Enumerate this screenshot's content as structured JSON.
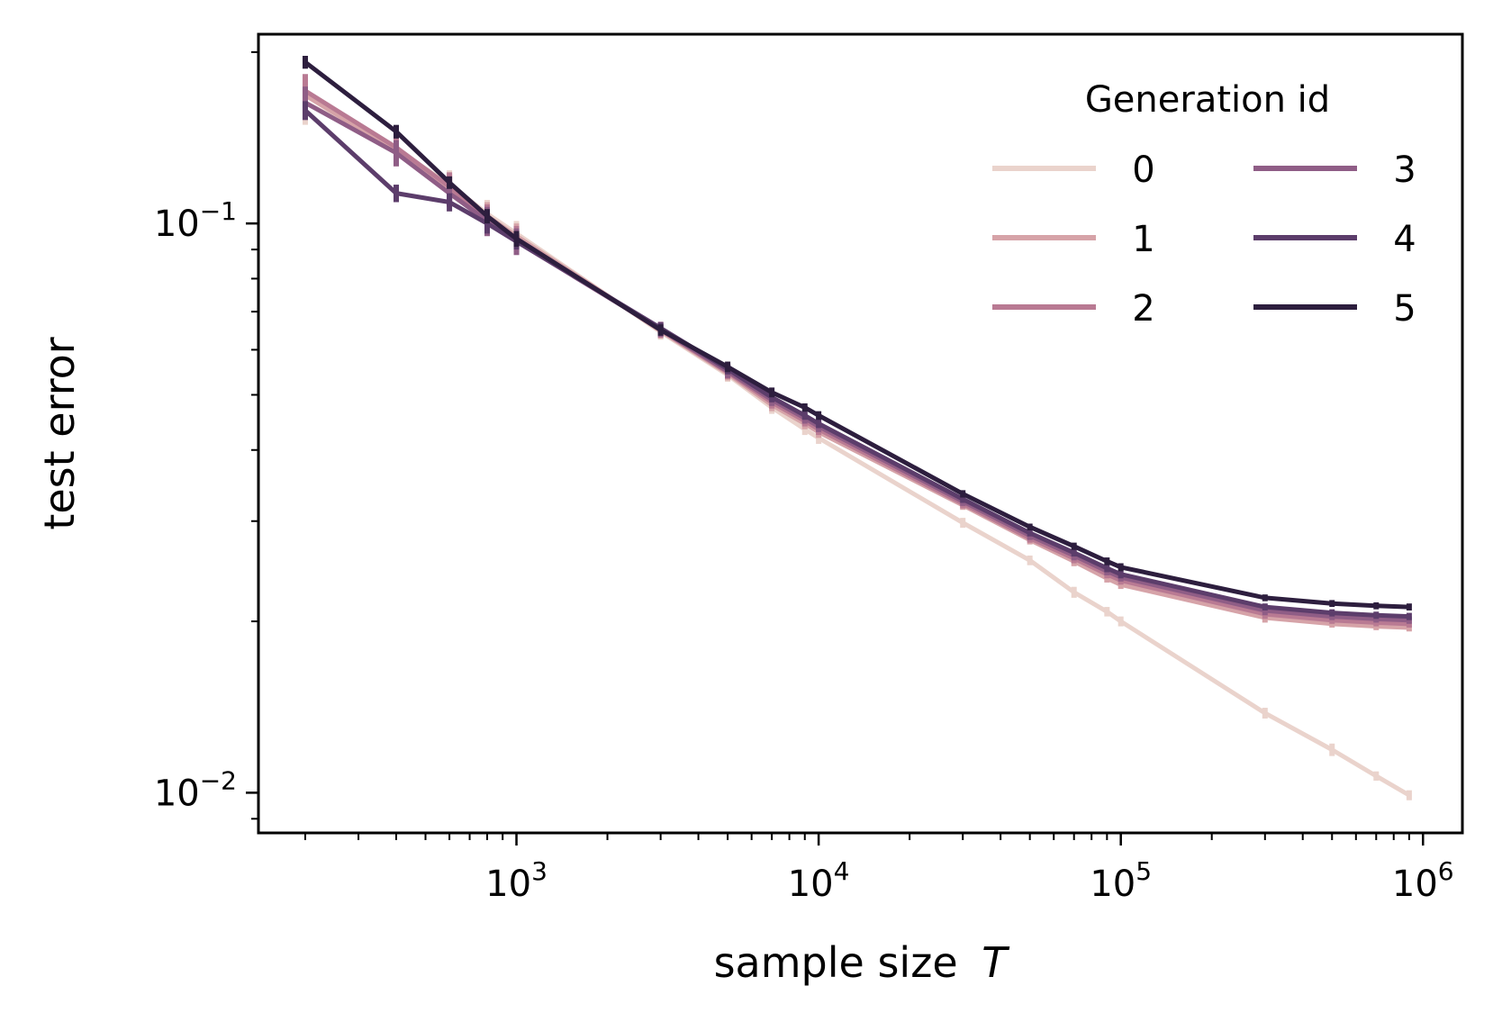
{
  "chart_data": {
    "type": "line",
    "xscale": "log",
    "yscale": "log",
    "xlabel": "sample size",
    "xlabel_var": "T",
    "ylabel": "test error",
    "xlim": [
      140,
      1350000
    ],
    "ylim": [
      0.0085,
      0.215
    ],
    "x_ticks": [
      {
        "value": 1000,
        "base": "10",
        "exp": "3"
      },
      {
        "value": 10000,
        "base": "10",
        "exp": "4"
      },
      {
        "value": 100000,
        "base": "10",
        "exp": "5"
      },
      {
        "value": 1000000,
        "base": "10",
        "exp": "6"
      }
    ],
    "y_ticks": [
      {
        "value": 0.1,
        "base": "10",
        "exp": "−1"
      },
      {
        "value": 0.01,
        "base": "10",
        "exp": "−2"
      }
    ],
    "legend": {
      "title": "Generation id",
      "position": "top-right",
      "columns": 2
    },
    "x": [
      200,
      400,
      600,
      800,
      1000,
      3000,
      5000,
      7000,
      9000,
      10000,
      30000,
      50000,
      70000,
      90000,
      100000,
      300000,
      500000,
      700000,
      900000
    ],
    "series": [
      {
        "name": "0",
        "color": "#ead3cc",
        "values": [
          0.163,
          0.135,
          0.117,
          0.104,
          0.096,
          0.0645,
          0.0542,
          0.0475,
          0.0435,
          0.042,
          0.0298,
          0.0256,
          0.0225,
          0.0208,
          0.02,
          0.0138,
          0.0119,
          0.0107,
          0.0099
        ],
        "errors": [
          0.014,
          0.008,
          0.007,
          0.006,
          0.005,
          0.002,
          0.0015,
          0.0012,
          0.001,
          0.001,
          0.0006,
          0.0005,
          0.0005,
          0.0004,
          0.0004,
          0.0003,
          0.0003,
          0.0002,
          0.0002
        ]
      },
      {
        "name": "1",
        "color": "#d6a3a8",
        "values": [
          0.168,
          0.134,
          0.115,
          0.103,
          0.095,
          0.0648,
          0.0545,
          0.048,
          0.0445,
          0.043,
          0.032,
          0.0278,
          0.0255,
          0.0238,
          0.0232,
          0.0203,
          0.0198,
          0.0196,
          0.0195
        ],
        "errors": [
          0.012,
          0.008,
          0.007,
          0.006,
          0.005,
          0.002,
          0.0015,
          0.0012,
          0.001,
          0.001,
          0.0006,
          0.0005,
          0.0005,
          0.0004,
          0.0004,
          0.0004,
          0.0003,
          0.0003,
          0.0003
        ]
      },
      {
        "name": "2",
        "color": "#b97a93",
        "values": [
          0.171,
          0.136,
          0.116,
          0.102,
          0.094,
          0.065,
          0.0548,
          0.0485,
          0.045,
          0.0435,
          0.0322,
          0.028,
          0.0258,
          0.0242,
          0.0236,
          0.0206,
          0.0201,
          0.0199,
          0.0198
        ],
        "errors": [
          0.012,
          0.008,
          0.007,
          0.006,
          0.005,
          0.002,
          0.0015,
          0.0012,
          0.001,
          0.001,
          0.0006,
          0.0005,
          0.0005,
          0.0004,
          0.0004,
          0.0004,
          0.0003,
          0.0003,
          0.0003
        ]
      },
      {
        "name": "3",
        "color": "#8f5d86",
        "values": [
          0.163,
          0.133,
          0.113,
          0.101,
          0.093,
          0.0652,
          0.055,
          0.049,
          0.0455,
          0.044,
          0.0325,
          0.0283,
          0.0261,
          0.0245,
          0.0239,
          0.0209,
          0.0204,
          0.0202,
          0.0201
        ],
        "errors": [
          0.011,
          0.007,
          0.006,
          0.006,
          0.005,
          0.002,
          0.0015,
          0.0012,
          0.001,
          0.001,
          0.0006,
          0.0005,
          0.0005,
          0.0004,
          0.0004,
          0.0004,
          0.0003,
          0.0003,
          0.0003
        ]
      },
      {
        "name": "4",
        "color": "#5c3d6b",
        "values": [
          0.158,
          0.113,
          0.109,
          0.1,
          0.093,
          0.0655,
          0.0555,
          0.0495,
          0.046,
          0.0445,
          0.0328,
          0.0286,
          0.0264,
          0.0248,
          0.0242,
          0.0212,
          0.0207,
          0.0205,
          0.0204
        ],
        "errors": [
          0.006,
          0.004,
          0.004,
          0.004,
          0.003,
          0.0015,
          0.0012,
          0.001,
          0.0008,
          0.0008,
          0.0005,
          0.0004,
          0.0004,
          0.0004,
          0.0004,
          0.0003,
          0.0003,
          0.0003,
          0.0003
        ]
      },
      {
        "name": "5",
        "color": "#2d1e3e",
        "values": [
          0.192,
          0.145,
          0.118,
          0.103,
          0.094,
          0.065,
          0.056,
          0.0505,
          0.0475,
          0.046,
          0.0335,
          0.0293,
          0.0271,
          0.0255,
          0.0249,
          0.022,
          0.0215,
          0.0213,
          0.0212
        ],
        "errors": [
          0.005,
          0.004,
          0.003,
          0.003,
          0.003,
          0.0015,
          0.0012,
          0.001,
          0.0008,
          0.0008,
          0.0005,
          0.0004,
          0.0004,
          0.0004,
          0.0004,
          0.0003,
          0.0003,
          0.0003,
          0.0003
        ]
      }
    ]
  }
}
